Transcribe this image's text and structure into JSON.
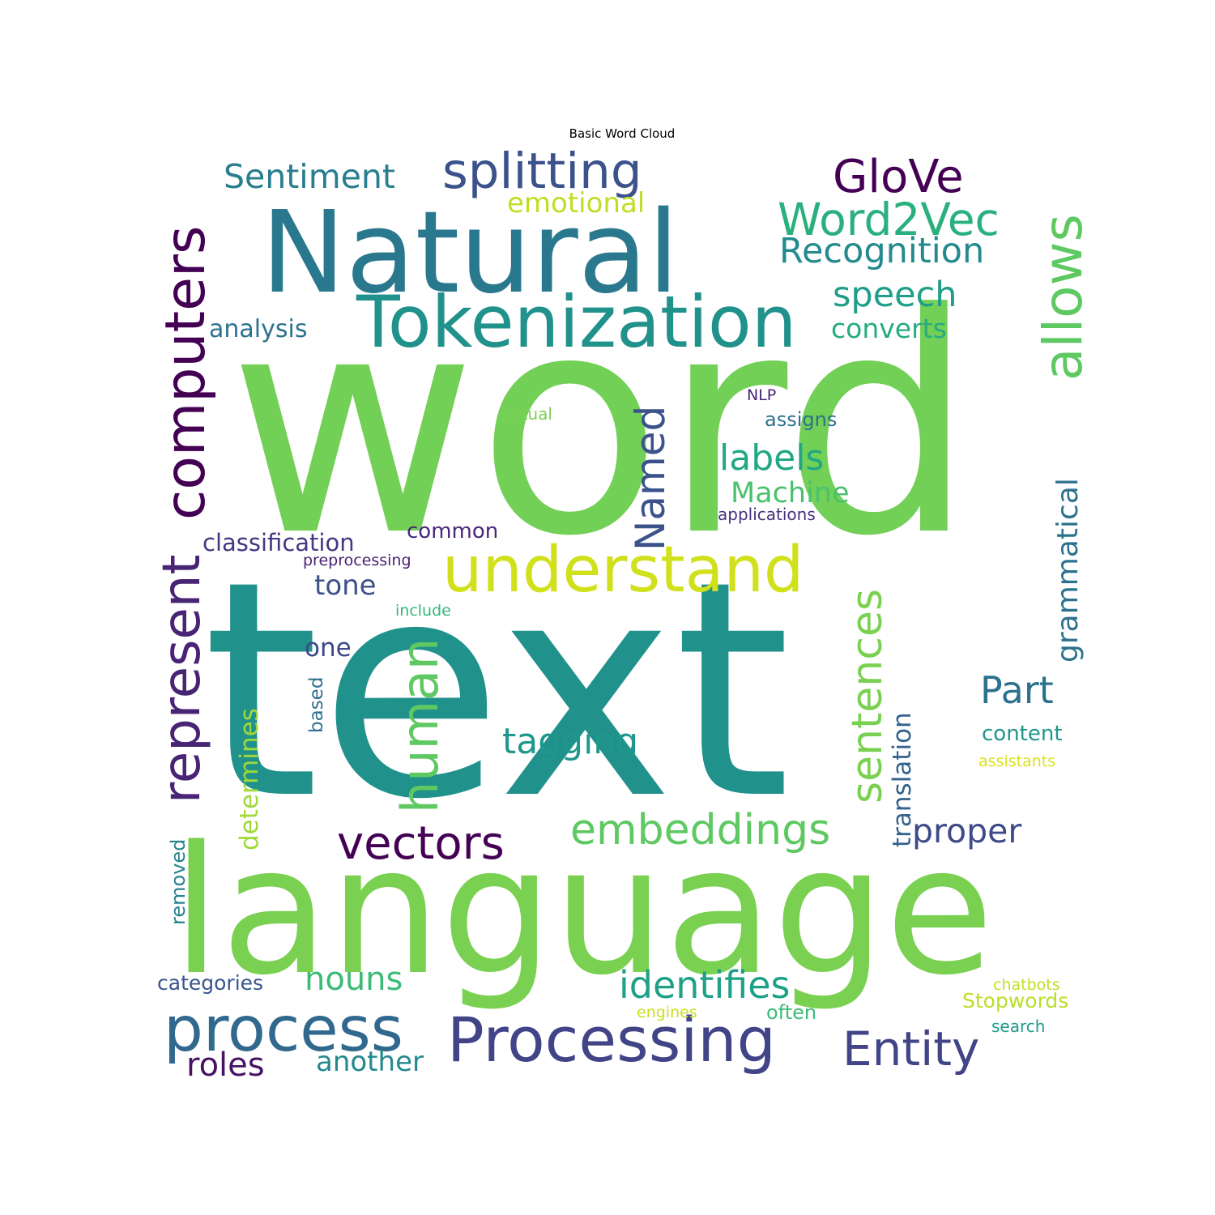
{
  "chart_data": {
    "type": "wordcloud",
    "title": "Basic Word Cloud",
    "words": [
      {
        "text": "word",
        "color": "#73d056"
      },
      {
        "text": "text",
        "color": "#21918c"
      },
      {
        "text": "language",
        "color": "#7ad151"
      },
      {
        "text": "Natural",
        "color": "#2a788e"
      },
      {
        "text": "Tokenization",
        "color": "#21918c"
      },
      {
        "text": "understand",
        "color": "#d0e11c"
      },
      {
        "text": "Processing",
        "color": "#414487"
      },
      {
        "text": "process",
        "color": "#31688e"
      },
      {
        "text": "computers",
        "color": "#440154"
      },
      {
        "text": "represent",
        "color": "#482475"
      },
      {
        "text": "splitting",
        "color": "#3b528b"
      },
      {
        "text": "allows",
        "color": "#5ec962"
      },
      {
        "text": "Word2Vec",
        "color": "#2ab07f"
      },
      {
        "text": "GloVe",
        "color": "#440154"
      },
      {
        "text": "Sentiment",
        "color": "#287d8e"
      },
      {
        "text": "Recognition",
        "color": "#238a8d"
      },
      {
        "text": "speech",
        "color": "#1f9e89"
      },
      {
        "text": "converts",
        "color": "#25ab82"
      },
      {
        "text": "analysis",
        "color": "#2c728e"
      },
      {
        "text": "emotional",
        "color": "#bddf26"
      },
      {
        "text": "human",
        "color": "#5ec962"
      },
      {
        "text": "Named",
        "color": "#3b528b"
      },
      {
        "text": "embeddings",
        "color": "#5ec962"
      },
      {
        "text": "sentences",
        "color": "#7ad151"
      },
      {
        "text": "vectors",
        "color": "#440154"
      },
      {
        "text": "Entity",
        "color": "#414487"
      },
      {
        "text": "identifies",
        "color": "#1fa187"
      },
      {
        "text": "labels",
        "color": "#22a785"
      },
      {
        "text": "Machine",
        "color": "#4ac16d"
      },
      {
        "text": "grammatical",
        "color": "#2c728e"
      },
      {
        "text": "tagging",
        "color": "#1f988b"
      },
      {
        "text": "Part",
        "color": "#2c728e"
      },
      {
        "text": "proper",
        "color": "#3e4a89"
      },
      {
        "text": "translation",
        "color": "#33638d"
      },
      {
        "text": "nouns",
        "color": "#3bbb75"
      },
      {
        "text": "roles",
        "color": "#471365"
      },
      {
        "text": "another",
        "color": "#23898e"
      },
      {
        "text": "classification",
        "color": "#453781"
      },
      {
        "text": "common",
        "color": "#482878"
      },
      {
        "text": "tone",
        "color": "#3b528b"
      },
      {
        "text": "one",
        "color": "#3e4989"
      },
      {
        "text": "determines",
        "color": "#9fda3a"
      },
      {
        "text": "based",
        "color": "#2e6f8e"
      },
      {
        "text": "removed",
        "color": "#26828e"
      },
      {
        "text": "categories",
        "color": "#39568c"
      },
      {
        "text": "preprocessing",
        "color": "#481f70"
      },
      {
        "text": "include",
        "color": "#35b779"
      },
      {
        "text": "virtual",
        "color": "#7ad151"
      },
      {
        "text": "NLP",
        "color": "#482475"
      },
      {
        "text": "assigns",
        "color": "#2d708e"
      },
      {
        "text": "applications",
        "color": "#46327e"
      },
      {
        "text": "content",
        "color": "#1f968b"
      },
      {
        "text": "assistants",
        "color": "#d8e219"
      },
      {
        "text": "chatbots",
        "color": "#c2df23"
      },
      {
        "text": "Stopwords",
        "color": "#bade28"
      },
      {
        "text": "often",
        "color": "#3bbb75"
      },
      {
        "text": "engines",
        "color": "#c8e020"
      },
      {
        "text": "search",
        "color": "#1e9b8a"
      }
    ]
  }
}
